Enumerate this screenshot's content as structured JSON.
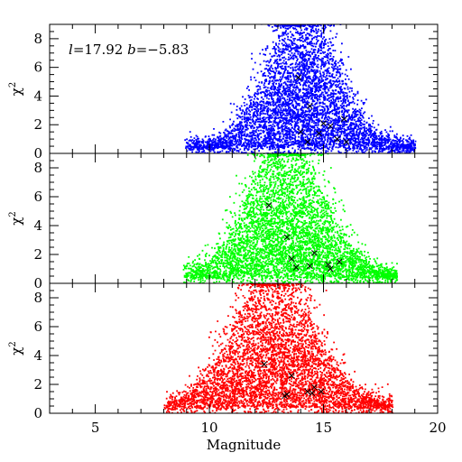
{
  "chart_data": {
    "type": "scatter",
    "title": "",
    "annotation": {
      "parts": [
        "l",
        "=17.92 ",
        "b",
        "=−5.83"
      ],
      "panel": 0
    },
    "xlabel": "Magnitude",
    "xlim": [
      3,
      20
    ],
    "x_major_ticks": [
      5,
      10,
      15,
      20
    ],
    "x_minor_step": 1,
    "panels": [
      {
        "name": "blue",
        "color": "#0000ff",
        "ylabel": "χ",
        "ylabel_sup": "2",
        "ylim": [
          0,
          9
        ],
        "y_major_ticks": [
          0,
          2,
          4,
          6,
          8
        ],
        "y_minor_step": 0.5,
        "y_tick_labels": [
          "0",
          "2",
          "4",
          "6",
          "8"
        ],
        "cloud": {
          "x_range": [
            8.9,
            19.0
          ],
          "peak_x": 14.0,
          "base_y": 0.55,
          "description_free_params": [
            1.6,
            0.55,
            9.2
          ]
        },
        "marked_points": [
          {
            "x": 13.9,
            "y": 5.3
          },
          {
            "x": 14.4,
            "y": 3.3
          },
          {
            "x": 15.0,
            "y": 2.1
          },
          {
            "x": 15.3,
            "y": 1.9
          },
          {
            "x": 14.0,
            "y": 1.5
          },
          {
            "x": 14.8,
            "y": 1.4
          },
          {
            "x": 15.6,
            "y": 1.0
          },
          {
            "x": 14.3,
            "y": 0.8
          },
          {
            "x": 15.9,
            "y": 2.4
          },
          {
            "x": 16.0,
            "y": 0.8
          }
        ]
      },
      {
        "name": "green",
        "color": "#00ff00",
        "ylabel": "χ",
        "ylabel_sup": "2",
        "ylim": [
          0,
          9
        ],
        "y_major_ticks": [
          0,
          2,
          4,
          6,
          8
        ],
        "y_minor_step": 0.5,
        "y_tick_labels": [
          "0",
          "2",
          "4",
          "6",
          "8"
        ],
        "cloud": {
          "x_range": [
            8.8,
            18.2
          ],
          "peak_x": 13.3,
          "base_y": 0.6,
          "description_free_params": [
            1.7,
            0.6,
            9.2
          ]
        },
        "marked_points": [
          {
            "x": 12.6,
            "y": 5.4
          },
          {
            "x": 13.4,
            "y": 3.2
          },
          {
            "x": 14.6,
            "y": 2.1
          },
          {
            "x": 13.6,
            "y": 1.7
          },
          {
            "x": 15.7,
            "y": 1.5
          },
          {
            "x": 15.2,
            "y": 1.3
          },
          {
            "x": 14.4,
            "y": 1.2
          },
          {
            "x": 13.8,
            "y": 1.1
          },
          {
            "x": 15.3,
            "y": 1.0
          }
        ]
      },
      {
        "name": "red",
        "color": "#ff0000",
        "ylabel": "χ",
        "ylabel_sup": "2",
        "ylim": [
          0,
          9
        ],
        "y_major_ticks": [
          0,
          2,
          4,
          6,
          8
        ],
        "y_minor_step": 0.5,
        "y_tick_labels": [
          "0",
          "2",
          "4",
          "6",
          "8"
        ],
        "show_x_tick_labels": true,
        "cloud": {
          "x_range": [
            8.0,
            18.0
          ],
          "peak_x": 12.8,
          "base_y": 0.6,
          "description_free_params": [
            1.8,
            0.6,
            9.2
          ]
        },
        "marked_points": [
          {
            "x": 12.4,
            "y": 3.4
          },
          {
            "x": 13.6,
            "y": 2.6
          },
          {
            "x": 14.6,
            "y": 1.8
          },
          {
            "x": 14.3,
            "y": 1.5
          },
          {
            "x": 14.9,
            "y": 1.5
          },
          {
            "x": 13.4,
            "y": 1.3
          },
          {
            "x": 13.3,
            "y": 1.2
          },
          {
            "x": 14.5,
            "y": 1.4
          }
        ]
      }
    ]
  }
}
